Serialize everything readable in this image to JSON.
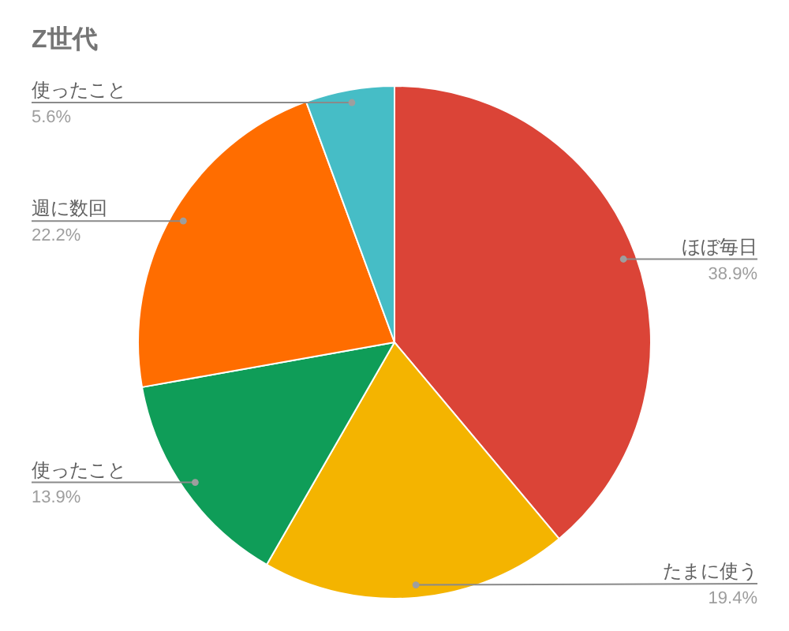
{
  "chart_data": {
    "type": "pie",
    "title": "Z世代",
    "categories": [
      "ほぼ毎日",
      "たまに使う",
      "使ったこと",
      "週に数回",
      "使ったこと"
    ],
    "values": [
      38.9,
      19.4,
      13.9,
      22.2,
      5.6
    ],
    "colors": [
      "#db4437",
      "#f4b400",
      "#0f9d58",
      "#ff6d00",
      "#46bdc6"
    ],
    "value_labels": [
      "38.9%",
      "19.4%",
      "13.9%",
      "22.2%",
      "5.6%"
    ]
  }
}
